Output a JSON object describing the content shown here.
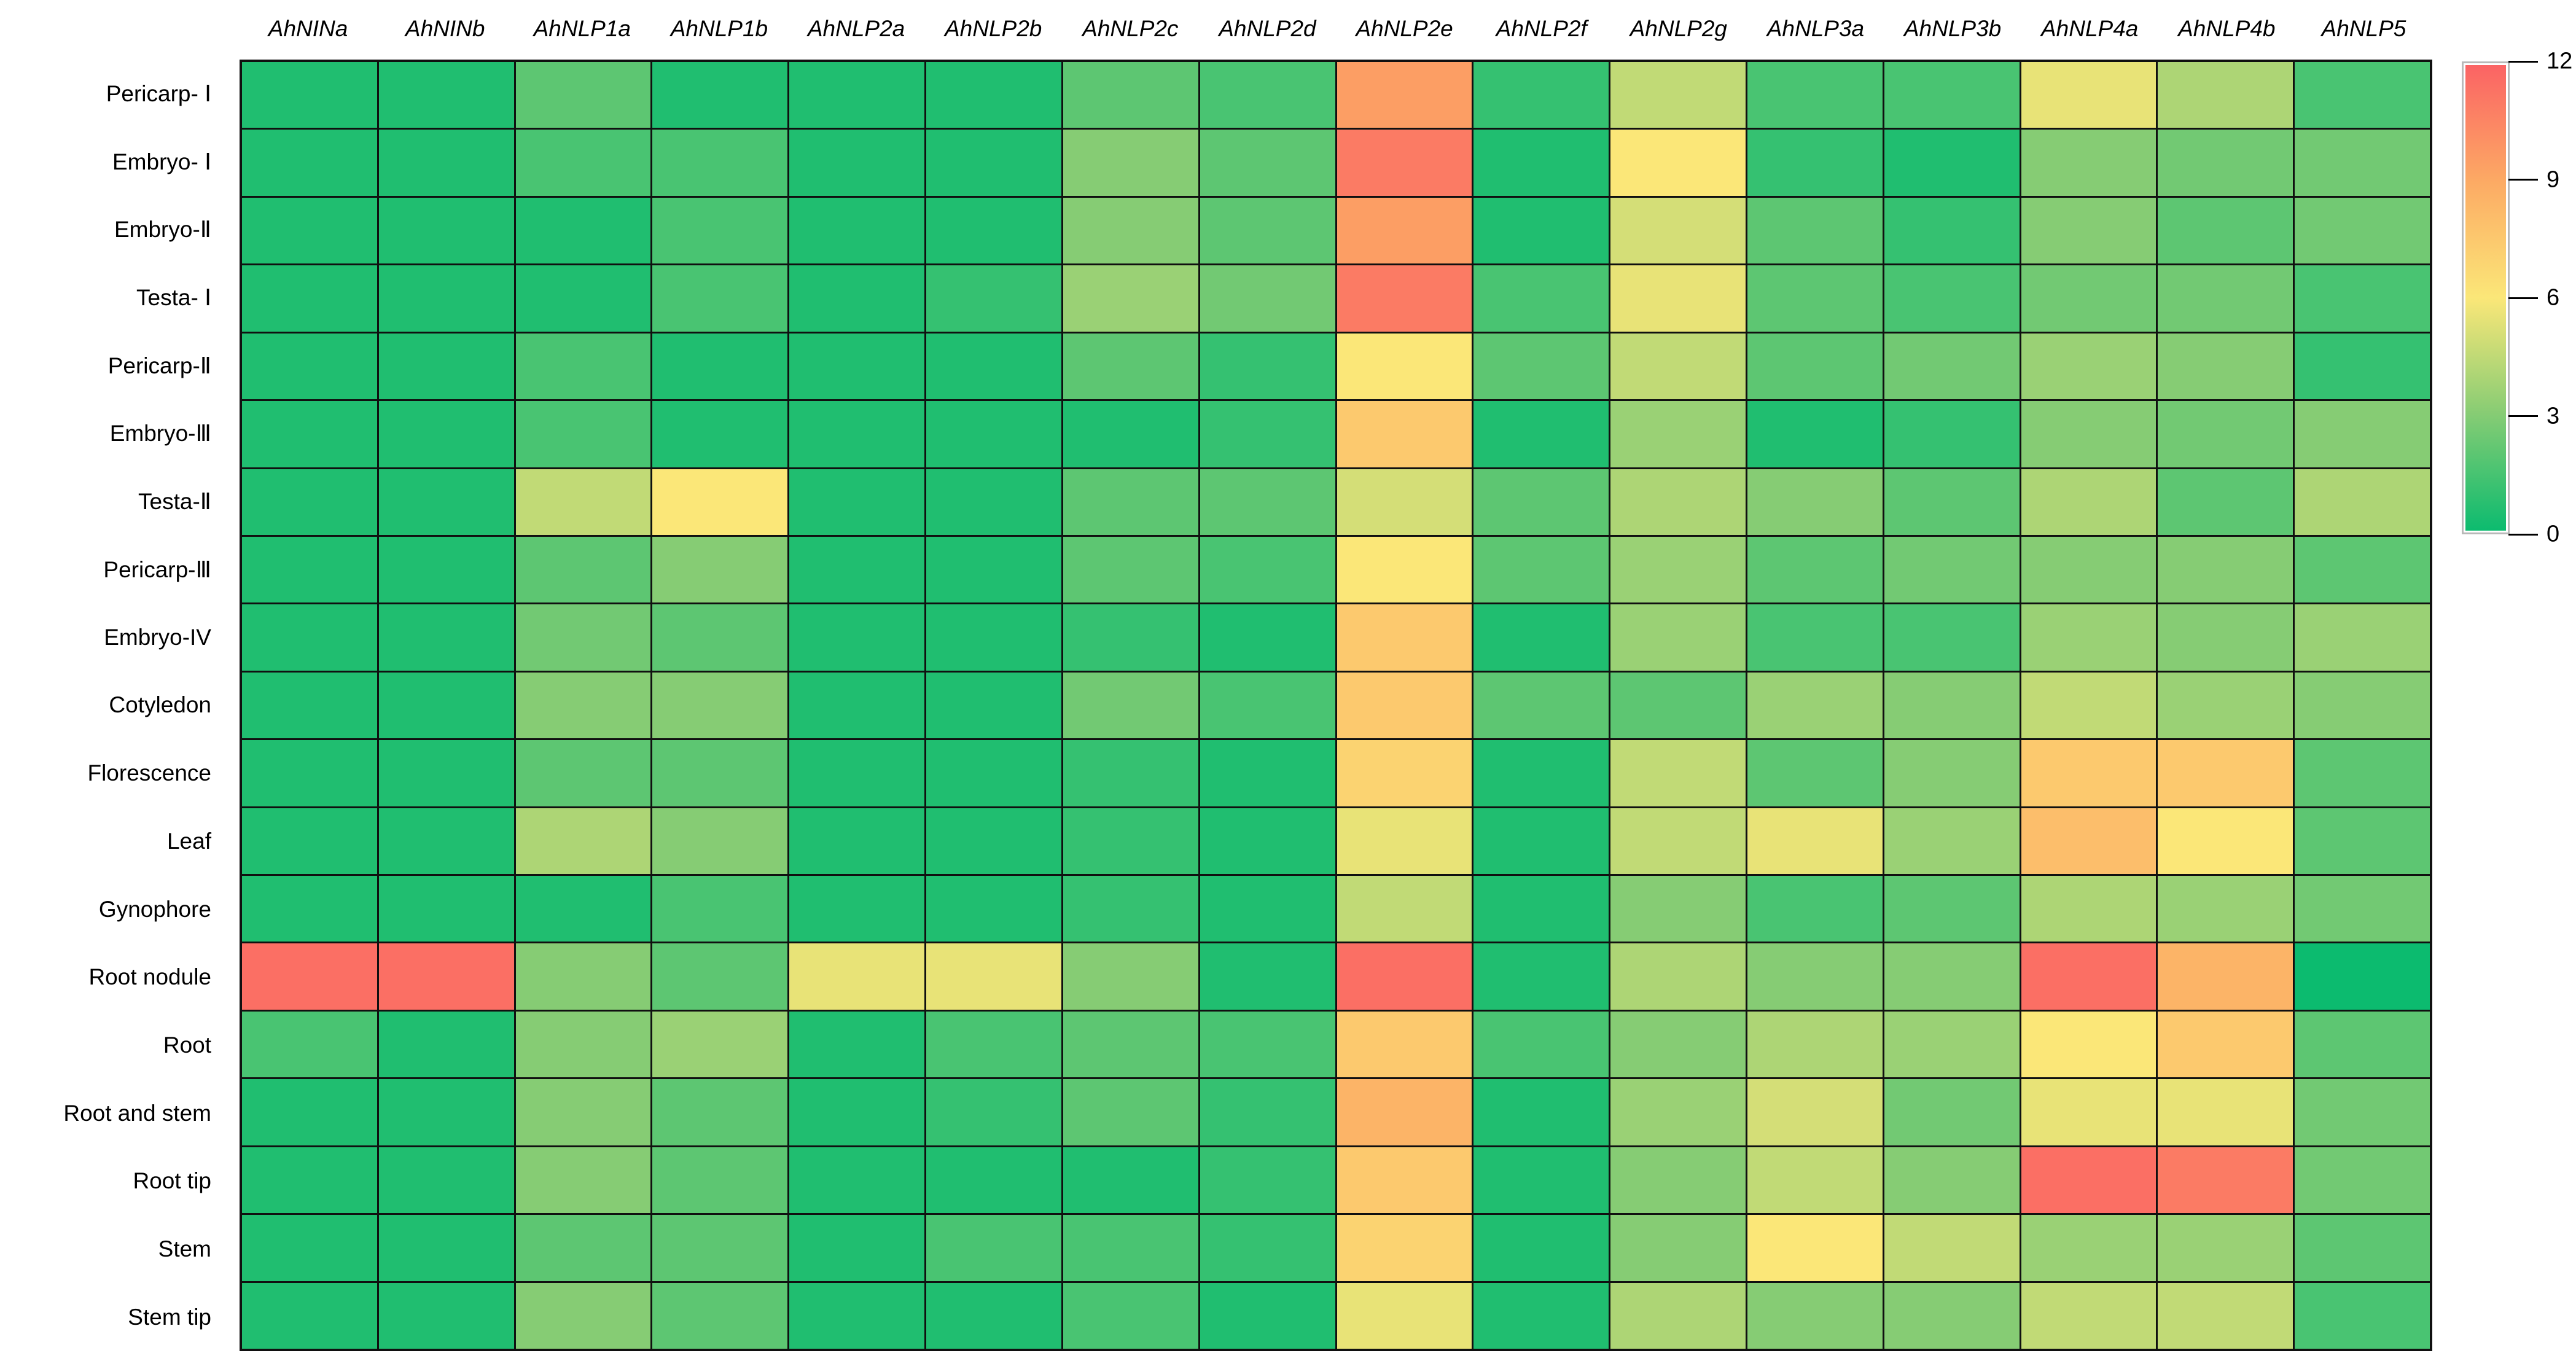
{
  "figure": {
    "background": "#ffffff",
    "grid_line_color": "#101010"
  },
  "chart_data": {
    "type": "heatmap",
    "title": "",
    "columns": [
      "AhNINa",
      "AhNINb",
      "AhNLP1a",
      "AhNLP1b",
      "AhNLP2a",
      "AhNLP2b",
      "AhNLP2c",
      "AhNLP2d",
      "AhNLP2e",
      "AhNLP2f",
      "AhNLP2g",
      "AhNLP3a",
      "AhNLP3b",
      "AhNLP4a",
      "AhNLP4b",
      "AhNLP5"
    ],
    "rows": [
      "Pericarp- Ⅰ",
      "Embryo- Ⅰ",
      "Embryo-Ⅱ",
      "Testa- Ⅰ",
      "Pericarp-Ⅱ",
      "Embryo-Ⅲ",
      "Testa-Ⅱ",
      "Pericarp-Ⅲ",
      "Embryo-IV",
      "Cotyledon",
      "Florescence",
      "Leaf",
      "Gynophore",
      "Root nodule",
      "Root",
      "Root and stem",
      "Root tip",
      "Stem",
      "Stem tip"
    ],
    "values": [
      [
        0.5,
        0.5,
        2,
        0.5,
        0.5,
        0.5,
        2,
        1.5,
        9.5,
        1,
        4.5,
        1.5,
        1.5,
        5.5,
        4,
        1.5
      ],
      [
        0.5,
        0.5,
        1.5,
        1.5,
        0.5,
        0.5,
        3,
        2,
        11,
        0.5,
        6,
        1,
        0.5,
        3,
        2.5,
        2.5
      ],
      [
        0.5,
        0.5,
        0.5,
        1.5,
        0.5,
        0.5,
        3,
        2,
        9.5,
        0.5,
        5,
        2,
        1,
        3,
        2,
        2.5
      ],
      [
        0.5,
        0.5,
        0.5,
        1.5,
        0.5,
        1,
        3.5,
        2.5,
        11,
        1.5,
        5.5,
        2,
        1.5,
        2.5,
        2.5,
        1.5
      ],
      [
        0.5,
        0.5,
        1.5,
        0.5,
        0.5,
        0.5,
        2,
        1,
        6,
        2,
        4.5,
        2,
        2.5,
        3.5,
        3,
        1
      ],
      [
        0.5,
        0.5,
        1.5,
        0.5,
        0.5,
        0.5,
        0.5,
        1,
        7.5,
        0.5,
        3.5,
        0.5,
        1,
        3,
        2.5,
        3
      ],
      [
        0.5,
        0.5,
        4.5,
        6,
        0.5,
        0.5,
        2,
        2,
        5,
        2,
        4,
        3,
        2,
        4,
        2,
        4
      ],
      [
        0.5,
        0.5,
        2,
        3,
        0.5,
        0.5,
        2,
        1.5,
        6,
        2,
        3.5,
        2,
        2.5,
        3,
        3,
        2
      ],
      [
        0.5,
        0.5,
        2.5,
        2,
        0.5,
        0.5,
        1,
        0.5,
        7.5,
        0.5,
        3.5,
        1.5,
        1.5,
        3.5,
        3,
        3.5
      ],
      [
        0.5,
        0.5,
        3,
        3,
        0.5,
        0.5,
        2.5,
        1.5,
        7.5,
        2,
        2,
        3.5,
        3,
        4.5,
        3.5,
        3
      ],
      [
        0.5,
        0.5,
        2,
        2,
        0.5,
        0.5,
        1,
        0.5,
        7,
        0.5,
        4.5,
        2,
        3,
        7.5,
        7.5,
        2
      ],
      [
        0.5,
        0.5,
        4,
        3,
        0.5,
        0.5,
        1,
        0.5,
        5.5,
        0.5,
        4.5,
        5.5,
        3.5,
        8,
        6,
        2
      ],
      [
        0.5,
        0.5,
        0.5,
        1.5,
        0.5,
        0.5,
        1,
        0.5,
        4.5,
        0.5,
        3,
        1.5,
        2,
        4,
        3.5,
        2.5
      ],
      [
        11.5,
        11.5,
        3,
        2,
        5.5,
        5.5,
        3,
        0.5,
        11.5,
        0.5,
        4,
        3,
        3,
        11.5,
        8.5,
        0
      ],
      [
        1.5,
        0.5,
        3,
        3.5,
        0.5,
        1.5,
        2,
        1.5,
        7.5,
        1.5,
        3,
        4,
        3.5,
        6,
        7.5,
        2
      ],
      [
        0.5,
        0.5,
        3,
        2,
        0.5,
        1,
        2,
        1,
        8.5,
        0.5,
        3.5,
        5,
        2.5,
        5.5,
        5.5,
        2.5
      ],
      [
        0.5,
        0.5,
        3,
        2,
        0.5,
        0.5,
        0.5,
        1,
        7.5,
        0.5,
        3,
        4.5,
        3,
        11.5,
        11,
        2.5
      ],
      [
        0.5,
        0.5,
        2,
        2,
        0.5,
        1.5,
        1.5,
        1,
        7,
        0.5,
        3,
        6,
        4.5,
        3.5,
        3.5,
        2
      ],
      [
        0.5,
        0.5,
        3,
        2,
        0.5,
        0.5,
        1.5,
        0.5,
        5.5,
        0.5,
        4,
        3,
        3,
        4.5,
        4.5,
        1.5
      ]
    ],
    "value_range": [
      0,
      12
    ],
    "colormap": {
      "stops": [
        {
          "v": 0,
          "c": "#0cbb6f"
        },
        {
          "v": 3,
          "c": "#86cc74"
        },
        {
          "v": 6,
          "c": "#fbe778"
        },
        {
          "v": 9,
          "c": "#fcaa64"
        },
        {
          "v": 12,
          "c": "#fb6364"
        }
      ]
    },
    "colorbar": {
      "min": 0,
      "max": 12,
      "tick_values": [
        12,
        9,
        6,
        3,
        0
      ],
      "tick_labels": [
        "12",
        "9",
        "6",
        "3",
        "0"
      ],
      "position": "top-right"
    },
    "legend_position": "right",
    "grid_on": true
  }
}
